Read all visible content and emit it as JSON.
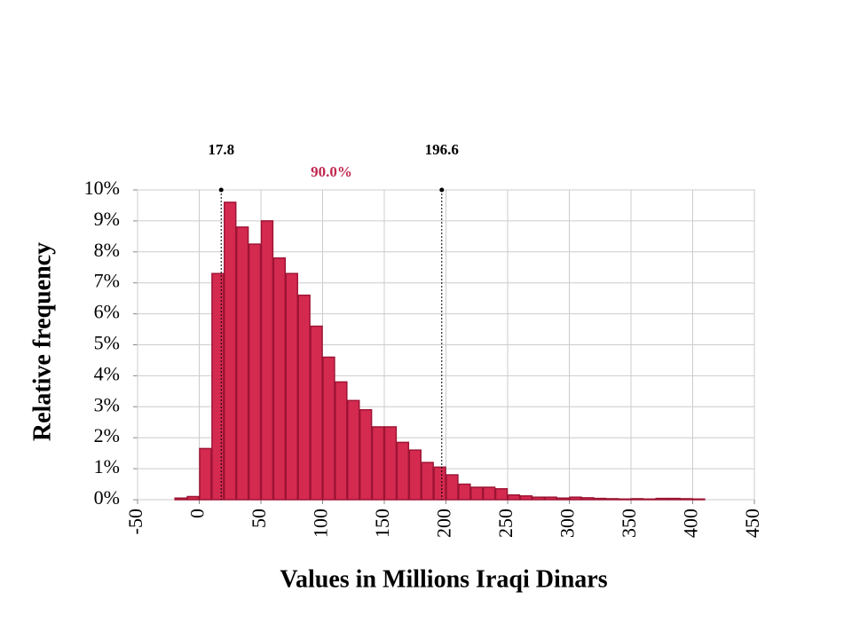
{
  "chart_data": {
    "type": "histogram",
    "xlabel": "Values in Millions Iraqi Dinars",
    "ylabel": "Relative frequency",
    "bins": [
      -20,
      -10,
      0,
      10,
      20,
      30,
      40,
      50,
      60,
      70,
      80,
      90,
      100,
      110,
      120,
      130,
      140,
      150,
      160,
      170,
      180,
      190,
      200,
      210,
      220,
      230,
      240,
      250,
      260,
      270,
      280,
      290,
      300,
      310,
      320,
      330,
      340,
      350,
      360,
      370,
      380,
      390,
      400,
      410
    ],
    "values": [
      0.05,
      0.1,
      1.65,
      7.3,
      9.6,
      8.8,
      8.25,
      9.0,
      7.8,
      7.3,
      6.6,
      5.6,
      4.6,
      3.8,
      3.2,
      2.9,
      2.35,
      2.35,
      1.85,
      1.6,
      1.2,
      1.05,
      0.8,
      0.5,
      0.4,
      0.4,
      0.35,
      0.15,
      0.12,
      0.08,
      0.08,
      0.05,
      0.08,
      0.06,
      0.04,
      0.03,
      0.02,
      0.03,
      0.02,
      0.04,
      0.04,
      0.03,
      0.02
    ],
    "color": "#d52a50",
    "xlim": [
      -50,
      450
    ],
    "xticks": [
      -50,
      0,
      50,
      100,
      150,
      200,
      250,
      300,
      350,
      400,
      450
    ],
    "ylim": [
      0,
      10
    ],
    "yticks": [
      {
        "value": 0,
        "label": "0%"
      },
      {
        "value": 1,
        "label": "1%"
      },
      {
        "value": 2,
        "label": "2%"
      },
      {
        "value": 3,
        "label": "3%"
      },
      {
        "value": 4,
        "label": "4%"
      },
      {
        "value": 5,
        "label": "5%"
      },
      {
        "value": 6,
        "label": "6%"
      },
      {
        "value": 7,
        "label": "7%"
      },
      {
        "value": 8,
        "label": "8%"
      },
      {
        "value": 9,
        "label": "9%"
      },
      {
        "value": 10,
        "label": "10%"
      }
    ],
    "grid": true,
    "markers": [
      17.8,
      196.6
    ],
    "interval_label": "90.0%",
    "interval_color": "#c0294f"
  }
}
